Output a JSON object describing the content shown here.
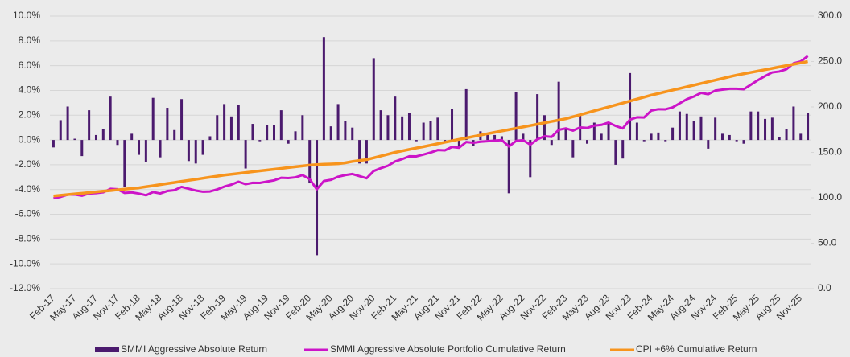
{
  "chart_data": {
    "type": "bar-line",
    "categories": [
      "Feb-17",
      null,
      null,
      "May-17",
      null,
      null,
      "Aug-17",
      null,
      null,
      "Nov-17",
      null,
      null,
      "Feb-18",
      null,
      null,
      "May-18",
      null,
      null,
      "Aug-18",
      null,
      null,
      "Nov-18",
      null,
      null,
      "Feb-19",
      null,
      null,
      "May-19",
      null,
      null,
      "Aug-19",
      null,
      null,
      "Nov-19",
      null,
      null,
      "Feb-20",
      null,
      null,
      "May-20",
      null,
      null,
      "Aug-20",
      null,
      null,
      "Nov-20",
      null,
      null,
      "Feb-21",
      null,
      null,
      "May-21",
      null,
      null,
      "Aug-21",
      null,
      null,
      "Nov-21",
      null,
      null,
      "Feb-22",
      null,
      null,
      "May-22",
      null,
      null,
      "Aug-22",
      null,
      null,
      "Nov-22",
      null,
      null,
      "Feb-23",
      null,
      null,
      "May-23",
      null,
      null,
      "Aug-23",
      null,
      null,
      "Nov-23",
      null,
      null,
      "Feb-24",
      null,
      null,
      "May-24",
      null,
      null,
      "Aug-24",
      null,
      null,
      "Nov-24",
      null,
      null,
      "Feb-25",
      null,
      null,
      "May-25",
      null,
      null,
      "Aug-25",
      null,
      null,
      "Nov-25",
      null
    ],
    "series": [
      {
        "name": "SMMI Aggressive Absolute Return",
        "type": "bar",
        "axis": "y",
        "color": "#4b1a6e",
        "values": [
          -0.6,
          1.6,
          2.7,
          0.1,
          -1.3,
          2.4,
          0.4,
          0.9,
          3.5,
          -0.4,
          -3.8,
          0.5,
          -1.2,
          -1.8,
          3.4,
          -1.4,
          2.6,
          0.8,
          3.3,
          -1.7,
          -1.9,
          -1.2,
          0.3,
          2.0,
          2.9,
          1.9,
          2.8,
          -2.3,
          1.3,
          -0.1,
          1.2,
          1.2,
          2.4,
          -0.3,
          0.7,
          2.0,
          -3.5,
          -9.3,
          8.3,
          1.1,
          2.9,
          1.5,
          1.0,
          -1.9,
          -1.9,
          6.6,
          2.4,
          2.0,
          3.5,
          1.9,
          2.2,
          -0.1,
          1.4,
          1.5,
          1.8,
          -0.2,
          2.5,
          -0.6,
          4.1,
          -0.5,
          0.7,
          0.4,
          0.4,
          0.3,
          -4.3,
          3.9,
          0.5,
          -3.0,
          3.7,
          2.0,
          -0.4,
          4.7,
          0.9,
          -1.4,
          2.0,
          -0.3,
          1.4,
          0.5,
          1.4,
          -2.0,
          -1.5,
          5.4,
          1.4,
          -0.1,
          0.5,
          0.6,
          -0.1,
          1.0,
          2.3,
          2.1,
          1.5,
          1.9,
          -0.7,
          1.8,
          0.5,
          0.4,
          -0.1,
          -0.3,
          2.3,
          2.3,
          1.7,
          1.8,
          0.2,
          0.9,
          2.7,
          0.5,
          2.2
        ]
      },
      {
        "name": "SMMI Aggressive Absolute Portfolio Cumulative Return",
        "type": "line",
        "axis": "y2",
        "color": "#cc14c8",
        "values": [
          99.4,
          101,
          103.5,
          103.6,
          102.3,
          104.8,
          105.2,
          106.1,
          109.8,
          109.4,
          105.4,
          106,
          104.7,
          102.8,
          106.3,
          104.8,
          107.5,
          108.4,
          112,
          110,
          108,
          106.7,
          107,
          109.2,
          112.3,
          114.5,
          117.7,
          115,
          116.5,
          116.4,
          117.8,
          119.2,
          122,
          121.7,
          122.5,
          125,
          120.6,
          109.4,
          118.5,
          119.8,
          123.2,
          125,
          126.2,
          123.8,
          121.5,
          129.5,
          132.6,
          135.3,
          140,
          142.6,
          145.7,
          145.6,
          147.6,
          149.8,
          152.5,
          152.2,
          156,
          155.1,
          161.4,
          160.6,
          161.7,
          162.3,
          163,
          163.5,
          156.5,
          162.6,
          163.4,
          158.5,
          164.4,
          167.7,
          167,
          174.8,
          176.4,
          173.9,
          177.4,
          176.9,
          179.4,
          180.3,
          182.8,
          179.1,
          176.4,
          186,
          188.6,
          188.4,
          196,
          197.5,
          197.4,
          199.5,
          204,
          208.5,
          211.5,
          215.5,
          214,
          218,
          219,
          220,
          220,
          219.5,
          224.5,
          229.5,
          234,
          238,
          239,
          241.5,
          248,
          250,
          256
        ]
      },
      {
        "name": "CPI +6% Cumulative Return",
        "type": "line",
        "axis": "y2",
        "color": "#f7941d",
        "values": [
          102,
          102.8,
          103.5,
          104.3,
          105,
          105.8,
          106.5,
          107.3,
          108,
          108.8,
          109.5,
          110.3,
          111,
          112.2,
          113.3,
          114.5,
          115.7,
          116.8,
          118,
          119.2,
          120.3,
          121.5,
          122.7,
          123.8,
          125,
          125.9,
          126.8,
          127.8,
          128.7,
          129.6,
          130.5,
          131.4,
          132.3,
          133.3,
          134.2,
          135.1,
          136,
          136.5,
          137,
          137.2,
          137.5,
          138.5,
          140,
          141,
          142,
          144,
          146,
          148,
          150,
          151.6,
          153.2,
          154.8,
          156.3,
          157.9,
          159.5,
          161.1,
          162.7,
          164.3,
          165.8,
          167.4,
          169,
          170.5,
          172,
          173.5,
          175,
          176.5,
          178,
          179.5,
          181,
          182.5,
          184,
          185.5,
          187,
          189.2,
          191.3,
          193.5,
          195.7,
          197.8,
          200,
          202.2,
          204.3,
          206.5,
          208.7,
          210.8,
          213,
          214.8,
          216.7,
          218.5,
          220.3,
          222.2,
          224,
          225.8,
          227.7,
          229.5,
          231.3,
          233.2,
          235,
          236.5,
          238,
          239.5,
          241,
          242.5,
          244,
          245.5,
          247,
          248.5,
          250
        ]
      }
    ],
    "ylim": [
      -12,
      10
    ],
    "yticks": [
      {
        "value": -12,
        "label": "-12.0%"
      },
      {
        "value": -10,
        "label": "-10.0%"
      },
      {
        "value": -8,
        "label": "-8.0%"
      },
      {
        "value": -6,
        "label": "-6.0%"
      },
      {
        "value": -4,
        "label": "-4.0%"
      },
      {
        "value": -2,
        "label": "-2.0%"
      },
      {
        "value": 0,
        "label": "0.0%"
      },
      {
        "value": 2,
        "label": "2.0%"
      },
      {
        "value": 4,
        "label": "4.0%"
      },
      {
        "value": 6,
        "label": "6.0%"
      },
      {
        "value": 8,
        "label": "8.0%"
      },
      {
        "value": 10,
        "label": "10.0%"
      }
    ],
    "y2lim": [
      0,
      300
    ],
    "y2ticks": [
      {
        "value": 0,
        "label": "0.0"
      },
      {
        "value": 50,
        "label": "50.0"
      },
      {
        "value": 100,
        "label": "100.0"
      },
      {
        "value": 150,
        "label": "150.0"
      },
      {
        "value": 200,
        "label": "200.0"
      },
      {
        "value": 250,
        "label": "250.0"
      },
      {
        "value": 300,
        "label": "300.0"
      }
    ],
    "grid": true,
    "legend": "bottom"
  }
}
